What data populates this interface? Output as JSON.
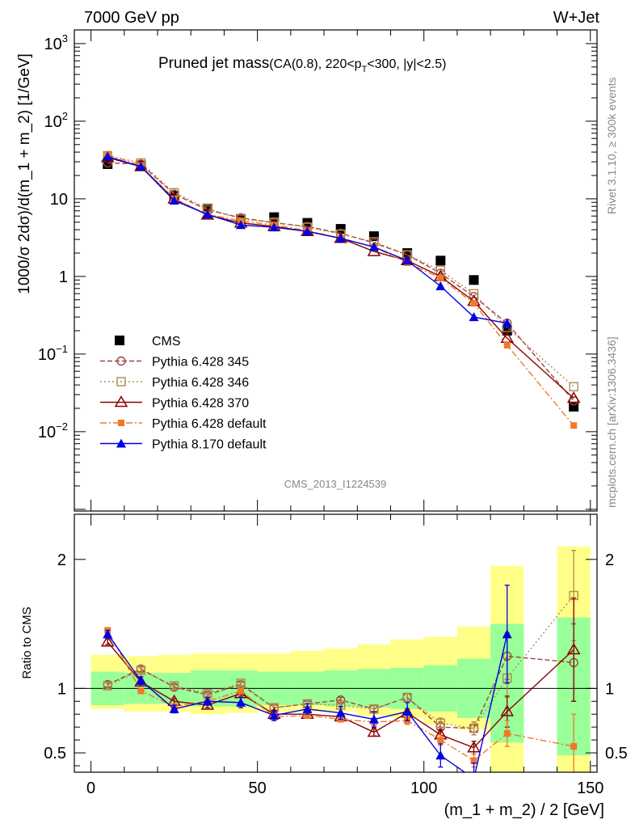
{
  "header": {
    "left": "7000 GeV pp",
    "right": "W+Jet"
  },
  "title": {
    "main": "Pruned jet mass",
    "detail_pre": "(CA(0.8), 220<p",
    "detail_sub": "T",
    "detail_post": "<300, |y|<2.5)"
  },
  "side_labels": {
    "rivet": "Rivet 3.1.10, ≥ 300k events",
    "source": "mcplots.cern.ch [arXiv:1306.3436]"
  },
  "analysis_id": "CMS_2013_I1224539",
  "colors": {
    "cms": "#000000",
    "p345": "#a0453c",
    "p346": "#b08850",
    "p370": "#8b0000",
    "p6def": "#f07828",
    "p8def": "#0000e0",
    "band_inner": "#99ff99",
    "band_outer": "#ffff88"
  },
  "chart_data": {
    "type": "scatter",
    "x_label": "(m_1 + m_2) / 2 [GeV]",
    "y_label_top": "1000/σ 2dσ)/d(m_1 + m_2) [1/GeV]",
    "y_label_bottom": "Ratio to CMS",
    "x_range": [
      -5,
      152
    ],
    "x_ticks": [
      "0",
      "50",
      "100",
      "150"
    ],
    "top_y_range": [
      0.00095,
      1500
    ],
    "top_y_log": true,
    "top_y_ticks": [
      "10^-2",
      "10^-1",
      "1",
      "10",
      "10^2",
      "10^3"
    ],
    "ratio_y_range": [
      0.35,
      2.35
    ],
    "ratio_y_ticks": [
      "0.5",
      "1",
      "2"
    ],
    "x": [
      5,
      15,
      25,
      35,
      45,
      55,
      65,
      75,
      85,
      95,
      105,
      115,
      125,
      145
    ],
    "x_bins": [
      [
        0,
        10
      ],
      [
        10,
        20
      ],
      [
        20,
        30
      ],
      [
        30,
        40
      ],
      [
        40,
        50
      ],
      [
        50,
        60
      ],
      [
        60,
        70
      ],
      [
        70,
        80
      ],
      [
        80,
        90
      ],
      [
        90,
        100
      ],
      [
        100,
        110
      ],
      [
        110,
        120
      ],
      [
        120,
        130
      ],
      [
        140,
        150
      ]
    ],
    "band_inner": [
      [
        0.87,
        1.13
      ],
      [
        0.88,
        1.12
      ],
      [
        0.88,
        1.12
      ],
      [
        0.86,
        1.14
      ],
      [
        0.86,
        1.14
      ],
      [
        0.87,
        1.13
      ],
      [
        0.87,
        1.13
      ],
      [
        0.86,
        1.14
      ],
      [
        0.85,
        1.15
      ],
      [
        0.84,
        1.16
      ],
      [
        0.82,
        1.18
      ],
      [
        0.77,
        1.23
      ],
      [
        0.58,
        1.5
      ],
      [
        0.48,
        1.55
      ]
    ],
    "band_outer": [
      [
        0.84,
        1.26
      ],
      [
        0.82,
        1.25
      ],
      [
        0.82,
        1.26
      ],
      [
        0.8,
        1.27
      ],
      [
        0.81,
        1.27
      ],
      [
        0.82,
        1.27
      ],
      [
        0.82,
        1.29
      ],
      [
        0.82,
        1.31
      ],
      [
        0.79,
        1.34
      ],
      [
        0.77,
        1.38
      ],
      [
        0.72,
        1.4
      ],
      [
        0.68,
        1.48
      ],
      [
        0.35,
        1.95
      ],
      [
        0.35,
        2.1
      ]
    ],
    "legend_position": "left-middle",
    "series": [
      {
        "name": "CMS",
        "key": "cms",
        "marker": "square-filled",
        "line": "none",
        "values": [
          28,
          27,
          11,
          7.5,
          5.5,
          5.8,
          4.9,
          4.1,
          3.3,
          2.0,
          1.6,
          0.9,
          0.2,
          0.021
        ],
        "ratio": [
          1,
          1,
          1,
          1,
          1,
          1,
          1,
          1,
          1,
          1,
          1,
          1,
          1,
          1
        ]
      },
      {
        "name": "Pythia 6.428 345",
        "key": "p345",
        "marker": "circle-open",
        "line": "dashed",
        "values": [
          29,
          28,
          11.5,
          7.2,
          5.7,
          4.9,
          4.4,
          3.6,
          2.7,
          1.9,
          1.1,
          0.55,
          0.25,
          0.025
        ],
        "ratio": [
          1.03,
          1.15,
          1.01,
          0.95,
          1.03,
          0.85,
          0.88,
          0.91,
          0.84,
          0.93,
          0.7,
          0.69,
          1.25,
          1.2
        ],
        "ratio_err": [
          0.02,
          0.02,
          0.02,
          0.02,
          0.02,
          0.02,
          0.02,
          0.02,
          0.03,
          0.03,
          0.04,
          0.05,
          0.18,
          0.3
        ]
      },
      {
        "name": "Pythia 6.428 346",
        "key": "p346",
        "marker": "square-open",
        "line": "dotted",
        "values": [
          36,
          29,
          12,
          7.5,
          5.5,
          5.0,
          4.3,
          3.5,
          2.8,
          1.9,
          1.2,
          0.6,
          0.22,
          0.038
        ],
        "ratio": [
          1.02,
          1.14,
          1.02,
          0.96,
          1.04,
          0.85,
          0.88,
          0.87,
          0.84,
          0.93,
          0.73,
          0.69,
          1.08,
          1.72
        ],
        "ratio_err": [
          0.02,
          0.02,
          0.02,
          0.02,
          0.02,
          0.02,
          0.02,
          0.02,
          0.03,
          0.03,
          0.04,
          0.05,
          0.15,
          0.35
        ]
      },
      {
        "name": "Pythia 6.428 370",
        "key": "p370",
        "marker": "triangle-open",
        "line": "solid",
        "values": [
          34,
          26,
          10,
          6.2,
          4.9,
          4.4,
          3.8,
          3.1,
          2.1,
          1.6,
          1.0,
          0.48,
          0.16,
          0.027
        ],
        "ratio": [
          1.36,
          1.05,
          0.9,
          0.87,
          0.96,
          0.8,
          0.8,
          0.78,
          0.66,
          0.81,
          0.64,
          0.54,
          0.82,
          1.3
        ],
        "ratio_err": [
          0.02,
          0.02,
          0.02,
          0.02,
          0.02,
          0.02,
          0.02,
          0.02,
          0.03,
          0.03,
          0.04,
          0.05,
          0.12,
          0.4
        ]
      },
      {
        "name": "Pythia 6.428 default",
        "key": "p6def",
        "marker": "square-filled-small",
        "line": "dashdot",
        "values": [
          37,
          27,
          10,
          6.3,
          5.2,
          4.6,
          3.9,
          3.1,
          2.4,
          1.5,
          0.95,
          0.45,
          0.13,
          0.012
        ],
        "ratio": [
          1.45,
          0.98,
          0.86,
          0.9,
          0.98,
          0.78,
          0.79,
          0.76,
          0.74,
          0.75,
          0.6,
          0.44,
          0.65,
          0.55
        ],
        "ratio_err": [
          0.02,
          0.02,
          0.02,
          0.02,
          0.02,
          0.02,
          0.02,
          0.02,
          0.03,
          0.03,
          0.04,
          0.05,
          0.1,
          0.25
        ]
      },
      {
        "name": "Pythia 8.170 default",
        "key": "p8def",
        "marker": "triangle-filled",
        "line": "solid",
        "values": [
          35,
          26,
          9.5,
          6.3,
          4.6,
          4.3,
          3.8,
          3.1,
          2.4,
          1.6,
          0.75,
          0.3,
          0.25,
          null
        ],
        "ratio": [
          1.42,
          1.06,
          0.84,
          0.9,
          0.89,
          0.79,
          0.84,
          0.81,
          0.76,
          0.82,
          0.48,
          0.3,
          1.42,
          null
        ],
        "ratio_err": [
          0.03,
          0.03,
          0.03,
          0.03,
          0.04,
          0.04,
          0.04,
          0.05,
          0.06,
          0.07,
          0.09,
          0.12,
          0.38,
          null
        ]
      }
    ]
  }
}
